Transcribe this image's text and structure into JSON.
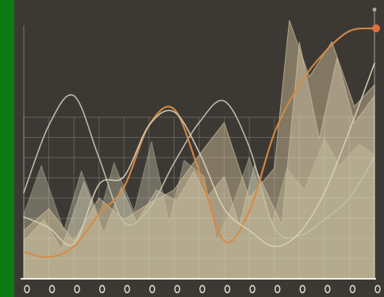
{
  "chart_data": {
    "type": "area",
    "title": "",
    "xlabel": "",
    "ylabel": "",
    "x": [
      0,
      1,
      2,
      3,
      4,
      5,
      6,
      7,
      8,
      9,
      10,
      11,
      12,
      13,
      14
    ],
    "tick_labels": [
      "",
      "",
      "",
      "",
      "",
      "",
      "",
      "",
      "",
      "",
      "",
      "",
      "",
      "",
      ""
    ],
    "xlim": [
      0,
      14
    ],
    "ylim": [
      0,
      100
    ],
    "grid": true,
    "legend": "none",
    "area_series": [
      {
        "name": "",
        "color": "#9c9a86",
        "points": [
          [
            0,
            24
          ],
          [
            0.7,
            42
          ],
          [
            1.6,
            18
          ],
          [
            2.3,
            40
          ],
          [
            3,
            23
          ],
          [
            3.6,
            43
          ],
          [
            4.4,
            25
          ],
          [
            5.1,
            51
          ],
          [
            5.8,
            21
          ],
          [
            6.4,
            44
          ],
          [
            7.2,
            38
          ],
          [
            7.7,
            14
          ],
          [
            8.4,
            29
          ],
          [
            9,
            45
          ],
          [
            9.9,
            20
          ],
          [
            10.5,
            41
          ],
          [
            11.2,
            33
          ],
          [
            12,
            52
          ],
          [
            12.6,
            42
          ],
          [
            13.4,
            50
          ],
          [
            14,
            46
          ]
        ]
      },
      {
        "name": "",
        "color": "#c3bea6",
        "points": [
          [
            0,
            14
          ],
          [
            0.8,
            22
          ],
          [
            1.5,
            11
          ],
          [
            2.4,
            36
          ],
          [
            3.2,
            17
          ],
          [
            3.9,
            34
          ],
          [
            4.5,
            21
          ],
          [
            5.3,
            33
          ],
          [
            6.1,
            29
          ],
          [
            6.8,
            40
          ],
          [
            7.3,
            30
          ],
          [
            8,
            38
          ],
          [
            8.6,
            20
          ],
          [
            9.2,
            42
          ],
          [
            10.3,
            20
          ],
          [
            11,
            88
          ],
          [
            11.8,
            52
          ],
          [
            12.5,
            82
          ],
          [
            13.2,
            58
          ],
          [
            14,
            68
          ]
        ]
      },
      {
        "name": "",
        "color": "#d4c49c",
        "points": [
          [
            0,
            18
          ],
          [
            1,
            26
          ],
          [
            2,
            14
          ],
          [
            3,
            30
          ],
          [
            4,
            22
          ],
          [
            5,
            28
          ],
          [
            6,
            33
          ],
          [
            7,
            46
          ],
          [
            8,
            58
          ],
          [
            9,
            30
          ],
          [
            10,
            41
          ],
          [
            10.6,
            96
          ],
          [
            11.4,
            75
          ],
          [
            12.3,
            88
          ],
          [
            13.2,
            64
          ],
          [
            14,
            72
          ]
        ]
      }
    ],
    "line_series": [
      {
        "name": "",
        "color": "#c5c0aa",
        "values": [
          32,
          57,
          68,
          45,
          21,
          26,
          43,
          58,
          66,
          49,
          19,
          16,
          22,
          30,
          45
        ]
      },
      {
        "name": "",
        "color": "#d88a42",
        "values": [
          10,
          8,
          12,
          24,
          34,
          57,
          63,
          40,
          14,
          25,
          54,
          72,
          84,
          92,
          93
        ]
      },
      {
        "name": "",
        "color": "#d8cfb6",
        "values": [
          23,
          19,
          13,
          35,
          38,
          57,
          62,
          47,
          26,
          18,
          12,
          17,
          32,
          55,
          80
        ]
      }
    ],
    "end_marker": {
      "series": 1,
      "x": 14,
      "y": 93,
      "color": "#e26e3e"
    }
  },
  "colors": {
    "background": "#3c3935",
    "green_bar": "#0d7a15",
    "grid": "#e9e4d3",
    "axis": "#f2eee2"
  }
}
